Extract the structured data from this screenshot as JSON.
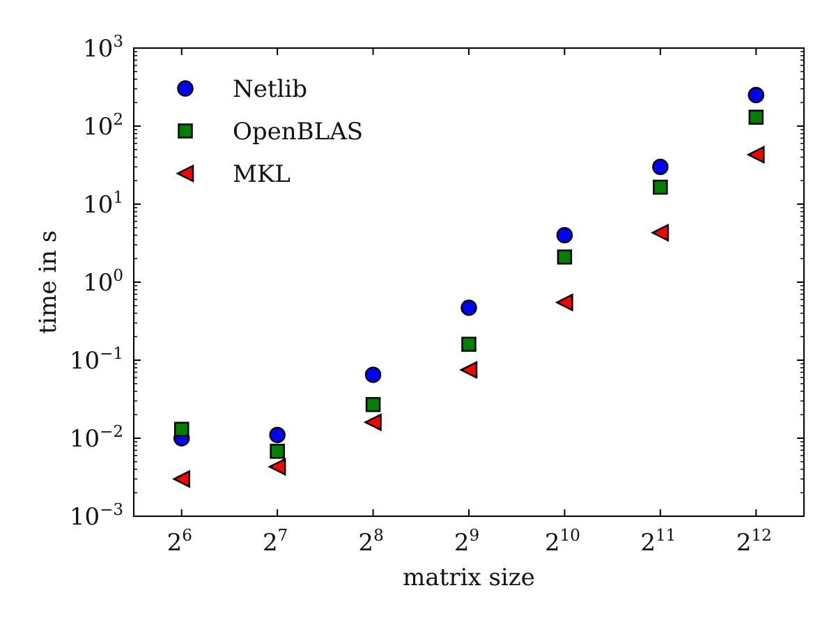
{
  "chart_data": {
    "type": "scatter",
    "title": "",
    "xlabel": "matrix size",
    "ylabel": "time in s",
    "x": [
      64,
      128,
      256,
      512,
      1024,
      2048,
      4096
    ],
    "x_ticks": [
      {
        "base": "2",
        "exp": "6"
      },
      {
        "base": "2",
        "exp": "7"
      },
      {
        "base": "2",
        "exp": "8"
      },
      {
        "base": "2",
        "exp": "9"
      },
      {
        "base": "2",
        "exp": "10"
      },
      {
        "base": "2",
        "exp": "11"
      },
      {
        "base": "2",
        "exp": "12"
      }
    ],
    "x_scale": "log2",
    "y_scale": "log10",
    "ylim": [
      0.001,
      1000
    ],
    "y_ticks": [
      {
        "base": "10",
        "exp": "−3"
      },
      {
        "base": "10",
        "exp": "−2"
      },
      {
        "base": "10",
        "exp": "−1"
      },
      {
        "base": "10",
        "exp": "0"
      },
      {
        "base": "10",
        "exp": "1"
      },
      {
        "base": "10",
        "exp": "2"
      },
      {
        "base": "10",
        "exp": "3"
      }
    ],
    "grid": false,
    "legend_position": "top-left",
    "series": [
      {
        "name": "Netlib",
        "marker": "circle",
        "color": "#0000ff",
        "values": [
          0.01,
          0.011,
          0.065,
          0.47,
          4.0,
          30,
          250
        ]
      },
      {
        "name": "OpenBLAS",
        "marker": "square",
        "color": "#007f00",
        "values": [
          0.013,
          0.0068,
          0.027,
          0.16,
          2.1,
          16.5,
          130
        ]
      },
      {
        "name": "MKL",
        "marker": "triangle-left",
        "color": "#ff0000",
        "values": [
          0.003,
          0.0043,
          0.016,
          0.075,
          0.55,
          4.3,
          43
        ]
      }
    ]
  }
}
